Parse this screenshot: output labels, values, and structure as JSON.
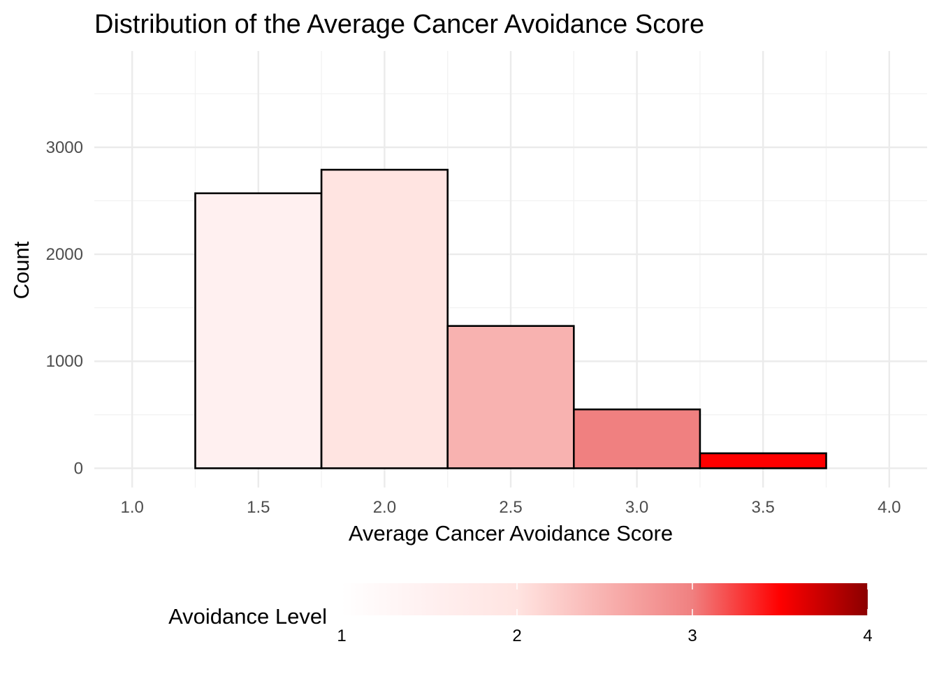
{
  "chart_data": {
    "type": "bar",
    "title": "Distribution of the Average Cancer Avoidance Score",
    "xlabel": "Average Cancer Avoidance Score",
    "ylabel": "Count",
    "xlim": [
      0.85,
      4.15
    ],
    "ylim": [
      -180,
      3900
    ],
    "x_ticks": [
      "1.0",
      "1.5",
      "2.0",
      "2.5",
      "3.0",
      "3.5",
      "4.0"
    ],
    "x_tick_values": [
      1.0,
      1.5,
      2.0,
      2.5,
      3.0,
      3.5,
      4.0
    ],
    "x_minor_values": [
      1.25,
      1.75,
      2.25,
      2.75,
      3.25,
      3.75
    ],
    "y_ticks": [
      "0",
      "1000",
      "2000",
      "3000"
    ],
    "y_tick_values": [
      0,
      1000,
      2000,
      3000
    ],
    "y_minor_values": [
      500,
      1500,
      2500,
      3500
    ],
    "grid": true,
    "bins": [
      {
        "x_start": 1.25,
        "x_end": 1.75,
        "value": 2570,
        "fill": "#FFF0F0"
      },
      {
        "x_start": 1.75,
        "x_end": 2.25,
        "value": 2790,
        "fill": "#FFE4E1"
      },
      {
        "x_start": 2.25,
        "x_end": 2.75,
        "value": 1330,
        "fill": "#F8B2B0"
      },
      {
        "x_start": 2.75,
        "x_end": 3.25,
        "value": 550,
        "fill": "#F08080"
      },
      {
        "x_start": 3.25,
        "x_end": 3.75,
        "value": 140,
        "fill": "#FF0000"
      }
    ],
    "legend": {
      "title": "Avoidance Level",
      "position": "bottom",
      "range": [
        1,
        4
      ],
      "ticks": [
        "1",
        "2",
        "3",
        "4"
      ],
      "tick_values": [
        1,
        2,
        3,
        4
      ],
      "gradient": [
        {
          "value": 1.0,
          "color": "#FFFFFF"
        },
        {
          "value": 1.5,
          "color": "#FFF0F0"
        },
        {
          "value": 2.0,
          "color": "#FFE4E1"
        },
        {
          "value": 2.5,
          "color": "#F8B2B0"
        },
        {
          "value": 3.0,
          "color": "#F08080"
        },
        {
          "value": 3.5,
          "color": "#FF0000"
        },
        {
          "value": 4.0,
          "color": "#8B0000"
        }
      ]
    },
    "colors": {
      "bar_outline": "#000000",
      "major_grid": "#EBEBEB",
      "minor_grid": "#F2F2F2",
      "tick_text": "#4D4D4D",
      "text": "#000000"
    }
  }
}
